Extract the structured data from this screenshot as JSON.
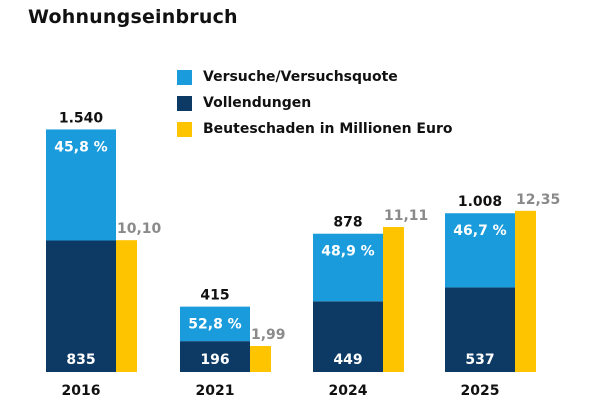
{
  "colors": {
    "attempts": "#1a9bdb",
    "completed": "#0d3a64",
    "damage": "#ffc400",
    "text_dark": "#111111",
    "text_gray": "#8a8a8a"
  },
  "chart_data": {
    "type": "bar",
    "title": "Wohnungseinbruch",
    "legend_position": "top",
    "grid": false,
    "legend": [
      {
        "label": "Versuche/Versuchsquote",
        "color": "attempts"
      },
      {
        "label": "Vollendungen",
        "color": "completed"
      },
      {
        "label": "Beuteschaden in Millionen Euro",
        "color": "damage"
      }
    ],
    "categories": [
      "2016",
      "2021",
      "2024",
      "2025"
    ],
    "series": [
      {
        "name": "Vollendungen",
        "values": [
          835,
          196,
          449,
          537
        ]
      },
      {
        "name": "Versuche/Versuchsquote",
        "values": [
          705,
          219,
          429,
          471
        ],
        "labels": [
          "45,8 %",
          "52,8 %",
          "48,9 %",
          "46,7 %"
        ]
      },
      {
        "name": "Beuteschaden in Millionen Euro",
        "values": [
          10.1,
          1.99,
          11.11,
          12.35
        ],
        "labels": [
          "10,10",
          "1,99",
          "11,11",
          "12,35"
        ]
      }
    ],
    "totals": [
      1540,
      415,
      878,
      1008
    ],
    "total_labels": [
      "1.540",
      "415",
      "878",
      "1.008"
    ],
    "completed_labels": [
      "835",
      "196",
      "449",
      "537"
    ]
  }
}
